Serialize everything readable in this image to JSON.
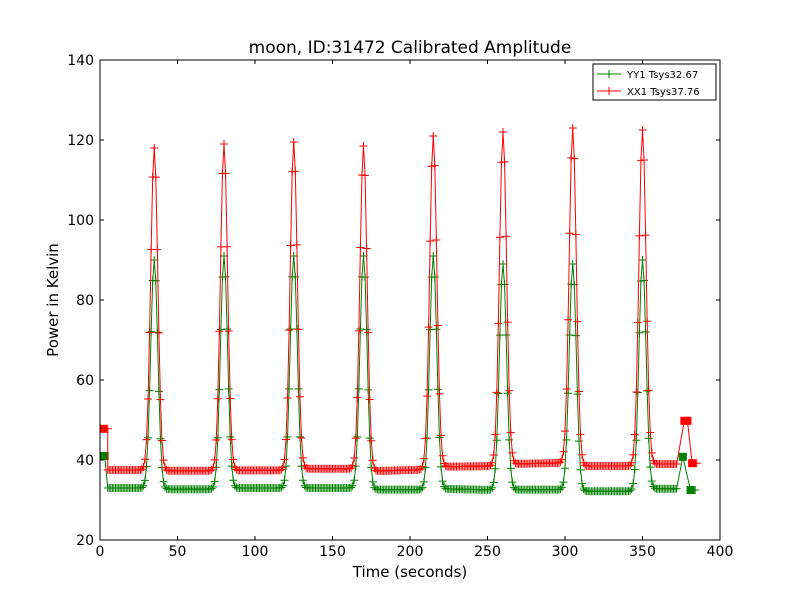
{
  "chart_data": {
    "type": "line",
    "title": "moon, ID:31472 Calibrated Amplitude",
    "xlabel": "Time (seconds)",
    "ylabel": "Power in Kelvin",
    "xlim": [
      0,
      400
    ],
    "ylim": [
      20,
      140
    ],
    "xticks": [
      0,
      50,
      100,
      150,
      200,
      250,
      300,
      350,
      400
    ],
    "yticks": [
      20,
      40,
      60,
      80,
      100,
      120,
      140
    ],
    "xtick_labels": [
      "0",
      "50",
      "100",
      "150",
      "200",
      "250",
      "300",
      "350",
      "400"
    ],
    "ytick_labels": [
      "20",
      "40",
      "60",
      "80",
      "100",
      "120",
      "140"
    ],
    "grid": false,
    "legend_position": "top-right",
    "marker": "+",
    "sample_interval_s": 1,
    "peak_half_width_s": 2.3,
    "series": [
      {
        "name": "YY1 Tsys32.67",
        "color": "#008000",
        "x_range": [
          5,
          372
        ],
        "peak_times": [
          35,
          80,
          125,
          170,
          215,
          260,
          305,
          350
        ],
        "peak_values": [
          90,
          91,
          91,
          91,
          91,
          89,
          89,
          90
        ],
        "baseline_segments": [
          {
            "x": [
              5,
              30
            ],
            "y": [
              33,
              33
            ]
          },
          {
            "x": [
              40,
              75
            ],
            "y": [
              32.7,
              32.7
            ]
          },
          {
            "x": [
              85,
              120
            ],
            "y": [
              33,
              33
            ]
          },
          {
            "x": [
              130,
              165
            ],
            "y": [
              33,
              33
            ]
          },
          {
            "x": [
              175,
              210
            ],
            "y": [
              32.6,
              32.6
            ]
          },
          {
            "x": [
              220,
              255
            ],
            "y": [
              32.8,
              32.5
            ]
          },
          {
            "x": [
              265,
              300
            ],
            "y": [
              32.6,
              32.6
            ]
          },
          {
            "x": [
              310,
              345
            ],
            "y": [
              32.2,
              32.2
            ]
          },
          {
            "x": [
              355,
              372
            ],
            "y": [
              32.8,
              32.8
            ]
          }
        ],
        "edge_points": [
          {
            "x": 1,
            "y": 41,
            "marker": "square"
          },
          {
            "x": 3,
            "y": 41,
            "marker": "square"
          },
          {
            "x": 376,
            "y": 40.8,
            "marker": "square"
          },
          {
            "x": 381,
            "y": 32.5,
            "marker": "square"
          },
          {
            "x": 384,
            "y": 32.5,
            "marker": "plus"
          }
        ]
      },
      {
        "name": "XX1 Tsys37.76",
        "color": "#ff0000",
        "x_range": [
          5,
          372
        ],
        "peak_times": [
          35,
          80,
          125,
          170,
          215,
          260,
          305,
          350
        ],
        "peak_values": [
          118,
          119,
          119.5,
          118.5,
          121,
          122,
          123,
          122.5
        ],
        "baseline_segments": [
          {
            "x": [
              5,
              30
            ],
            "y": [
              37.5,
              37.5
            ]
          },
          {
            "x": [
              40,
              75
            ],
            "y": [
              37.3,
              37.3
            ]
          },
          {
            "x": [
              85,
              120
            ],
            "y": [
              37.4,
              37.4
            ]
          },
          {
            "x": [
              130,
              165
            ],
            "y": [
              37.8,
              37.8
            ]
          },
          {
            "x": [
              175,
              210
            ],
            "y": [
              37.2,
              37.6
            ]
          },
          {
            "x": [
              220,
              255
            ],
            "y": [
              38.3,
              38.5
            ]
          },
          {
            "x": [
              265,
              300
            ],
            "y": [
              39,
              39.3
            ]
          },
          {
            "x": [
              310,
              345
            ],
            "y": [
              38.5,
              38.5
            ]
          },
          {
            "x": [
              355,
              372
            ],
            "y": [
              39,
              39
            ]
          }
        ],
        "edge_points": [
          {
            "x": 2,
            "y": 47.8,
            "marker": "square"
          },
          {
            "x": 5,
            "y": 47.8,
            "marker": "plus"
          },
          {
            "x": 377,
            "y": 49.8,
            "marker": "square"
          },
          {
            "x": 379,
            "y": 49.8,
            "marker": "square"
          },
          {
            "x": 382,
            "y": 39.2,
            "marker": "square"
          },
          {
            "x": 385,
            "y": 39.2,
            "marker": "plus"
          }
        ]
      }
    ]
  }
}
